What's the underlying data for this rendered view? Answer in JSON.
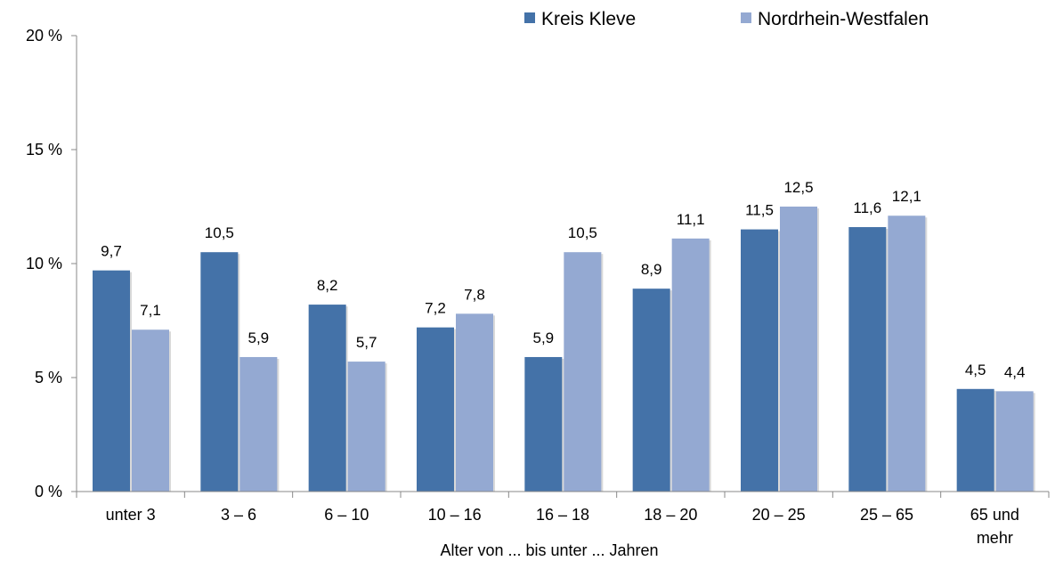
{
  "chart_data": {
    "type": "bar",
    "categories": [
      [
        "unter 3"
      ],
      [
        "3 –  6"
      ],
      [
        "6 – 10"
      ],
      [
        "10 – 16"
      ],
      [
        "16 – 18"
      ],
      [
        "18 – 20"
      ],
      [
        "20 – 25"
      ],
      [
        "25 – 65"
      ],
      [
        "65 und",
        "mehr"
      ]
    ],
    "series": [
      {
        "name": "Kreis Kleve",
        "color": "#4472a8",
        "values": [
          9.7,
          10.5,
          8.2,
          7.2,
          5.9,
          8.9,
          11.5,
          11.6,
          4.5
        ],
        "labels": [
          "9,7",
          "10,5",
          "8,2",
          "7,2",
          "5,9",
          "8,9",
          "11,5",
          "11,6",
          "4,5"
        ]
      },
      {
        "name": "Nordrhein-Westfalen",
        "color": "#94a9d2",
        "values": [
          7.1,
          5.9,
          5.7,
          7.8,
          10.5,
          11.1,
          12.5,
          12.1,
          4.4
        ],
        "labels": [
          "7,1",
          "5,9",
          "5,7",
          "7,8",
          "10,5",
          "11,1",
          "12,5",
          "12,1",
          "4,4"
        ]
      }
    ],
    "y_ticks": [
      {
        "value": 0,
        "label": "0 %"
      },
      {
        "value": 5,
        "label": "5 %"
      },
      {
        "value": 10,
        "label": "10 %"
      },
      {
        "value": 15,
        "label": "15 %"
      },
      {
        "value": 20,
        "label": "20 %"
      }
    ],
    "xlabel": "Alter von ... bis unter ... Jahren",
    "ylabel": "",
    "ylim": [
      0,
      20
    ],
    "grid": false,
    "legend_position": "top-right"
  }
}
